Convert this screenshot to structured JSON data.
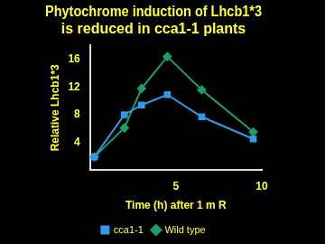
{
  "chart_data": {
    "type": "line",
    "title": [
      "Phytochrome induction of Lhcb1*3",
      "is reduced in cca1-1 plants"
    ],
    "x_label": "Time (h) after 1 m R",
    "y_label": "Relative Lhcb1*3",
    "x": [
      0.25,
      2,
      3,
      4.5,
      6.5,
      9.5
    ],
    "series": [
      {
        "name": "cca1-1",
        "color": "#2f9be8",
        "marker": "square",
        "values": [
          1.9,
          8.0,
          9.4,
          10.9,
          7.7,
          4.5
        ]
      },
      {
        "name": "Wild type",
        "color": "#1a9e6a",
        "marker": "diamond",
        "values": [
          1.9,
          6.1,
          11.8,
          16.4,
          11.6,
          5.5
        ]
      }
    ],
    "xlim": [
      0,
      10
    ],
    "xticks": [
      5,
      10
    ],
    "ylim": [
      0,
      18
    ],
    "yticks": [
      4,
      8,
      12,
      16
    ],
    "grid": false,
    "legend": "bottom"
  }
}
